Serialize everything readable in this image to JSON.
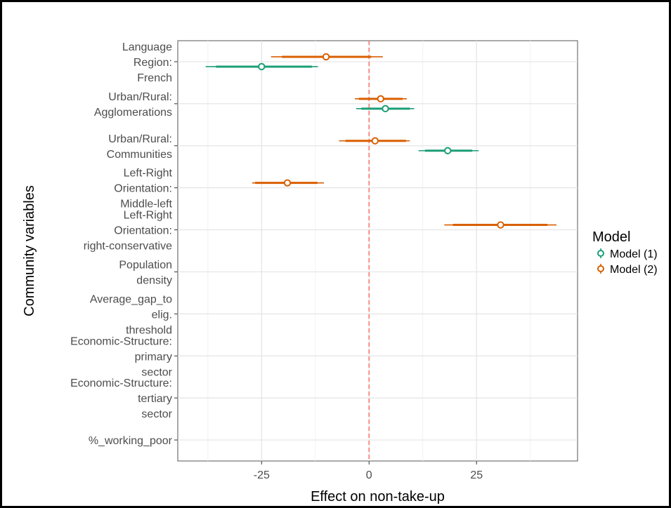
{
  "chart_data": {
    "type": "scatter",
    "title": "",
    "xlabel": "Effect on non-take-up",
    "ylabel": "Community variables",
    "xlim": [
      -44.5,
      48.5
    ],
    "xticks": [
      -25,
      0,
      25
    ],
    "reference_line": {
      "x": 0,
      "color": "#f8766d",
      "style": "dashed"
    },
    "grid": true,
    "legend_position": "right",
    "legend": {
      "title": "Model",
      "entries": [
        "Model (1)",
        "Model (2)"
      ]
    },
    "colors": {
      "Model (1)": "#1b9e77",
      "Model (2)": "#d95f02"
    },
    "categories": [
      {
        "label": [
          "Language",
          "Region:",
          "French"
        ]
      },
      {
        "label": [
          "Urban/Rural:",
          "Agglomerations"
        ]
      },
      {
        "label": [
          "Urban/Rural:",
          "Communities"
        ]
      },
      {
        "label": [
          "Left-Right",
          "Orientation:",
          "Middle-left"
        ]
      },
      {
        "label": [
          "Left-Right",
          "Orientation:",
          "right-conservative"
        ]
      },
      {
        "label": [
          "Population",
          "density"
        ]
      },
      {
        "label": [
          "Average_gap_to",
          "elig.",
          "threshold"
        ]
      },
      {
        "label": [
          "Economic-Structure:",
          "primary",
          "sector"
        ]
      },
      {
        "label": [
          "Economic-Structure:",
          "tertiary",
          "sector"
        ]
      },
      {
        "label": [
          "%_working_poor"
        ]
      }
    ],
    "series": [
      {
        "name": "Model (1)",
        "points": [
          {
            "category": 0,
            "estimate": -25.0,
            "ci_inner": [
              -35.6,
              -13.3
            ],
            "ci_outer": [
              -38.0,
              -11.9
            ]
          },
          {
            "category": 1,
            "estimate": 3.8,
            "ci_inner": [
              -1.8,
              9.5
            ],
            "ci_outer": [
              -3.0,
              10.5
            ]
          },
          {
            "category": 2,
            "estimate": 18.3,
            "ci_inner": [
              13.0,
              24.0
            ],
            "ci_outer": [
              11.5,
              25.5
            ]
          }
        ]
      },
      {
        "name": "Model (2)",
        "points": [
          {
            "category": 0,
            "estimate": -10.0,
            "ci_inner": [
              -20.3,
              0.5
            ],
            "ci_outer": [
              -22.8,
              3.2
            ]
          },
          {
            "category": 1,
            "estimate": 2.7,
            "ci_inner": [
              -2.4,
              7.8
            ],
            "ci_outer": [
              -3.3,
              8.8
            ]
          },
          {
            "category": 2,
            "estimate": 1.4,
            "ci_inner": [
              -5.5,
              8.6
            ],
            "ci_outer": [
              -7.0,
              9.5
            ]
          },
          {
            "category": 3,
            "estimate": -19.0,
            "ci_inner": [
              -26.5,
              -12.0
            ],
            "ci_outer": [
              -27.2,
              -10.5
            ]
          },
          {
            "category": 4,
            "estimate": 30.6,
            "ci_inner": [
              19.5,
              41.5
            ],
            "ci_outer": [
              17.5,
              43.6
            ]
          }
        ]
      }
    ]
  }
}
